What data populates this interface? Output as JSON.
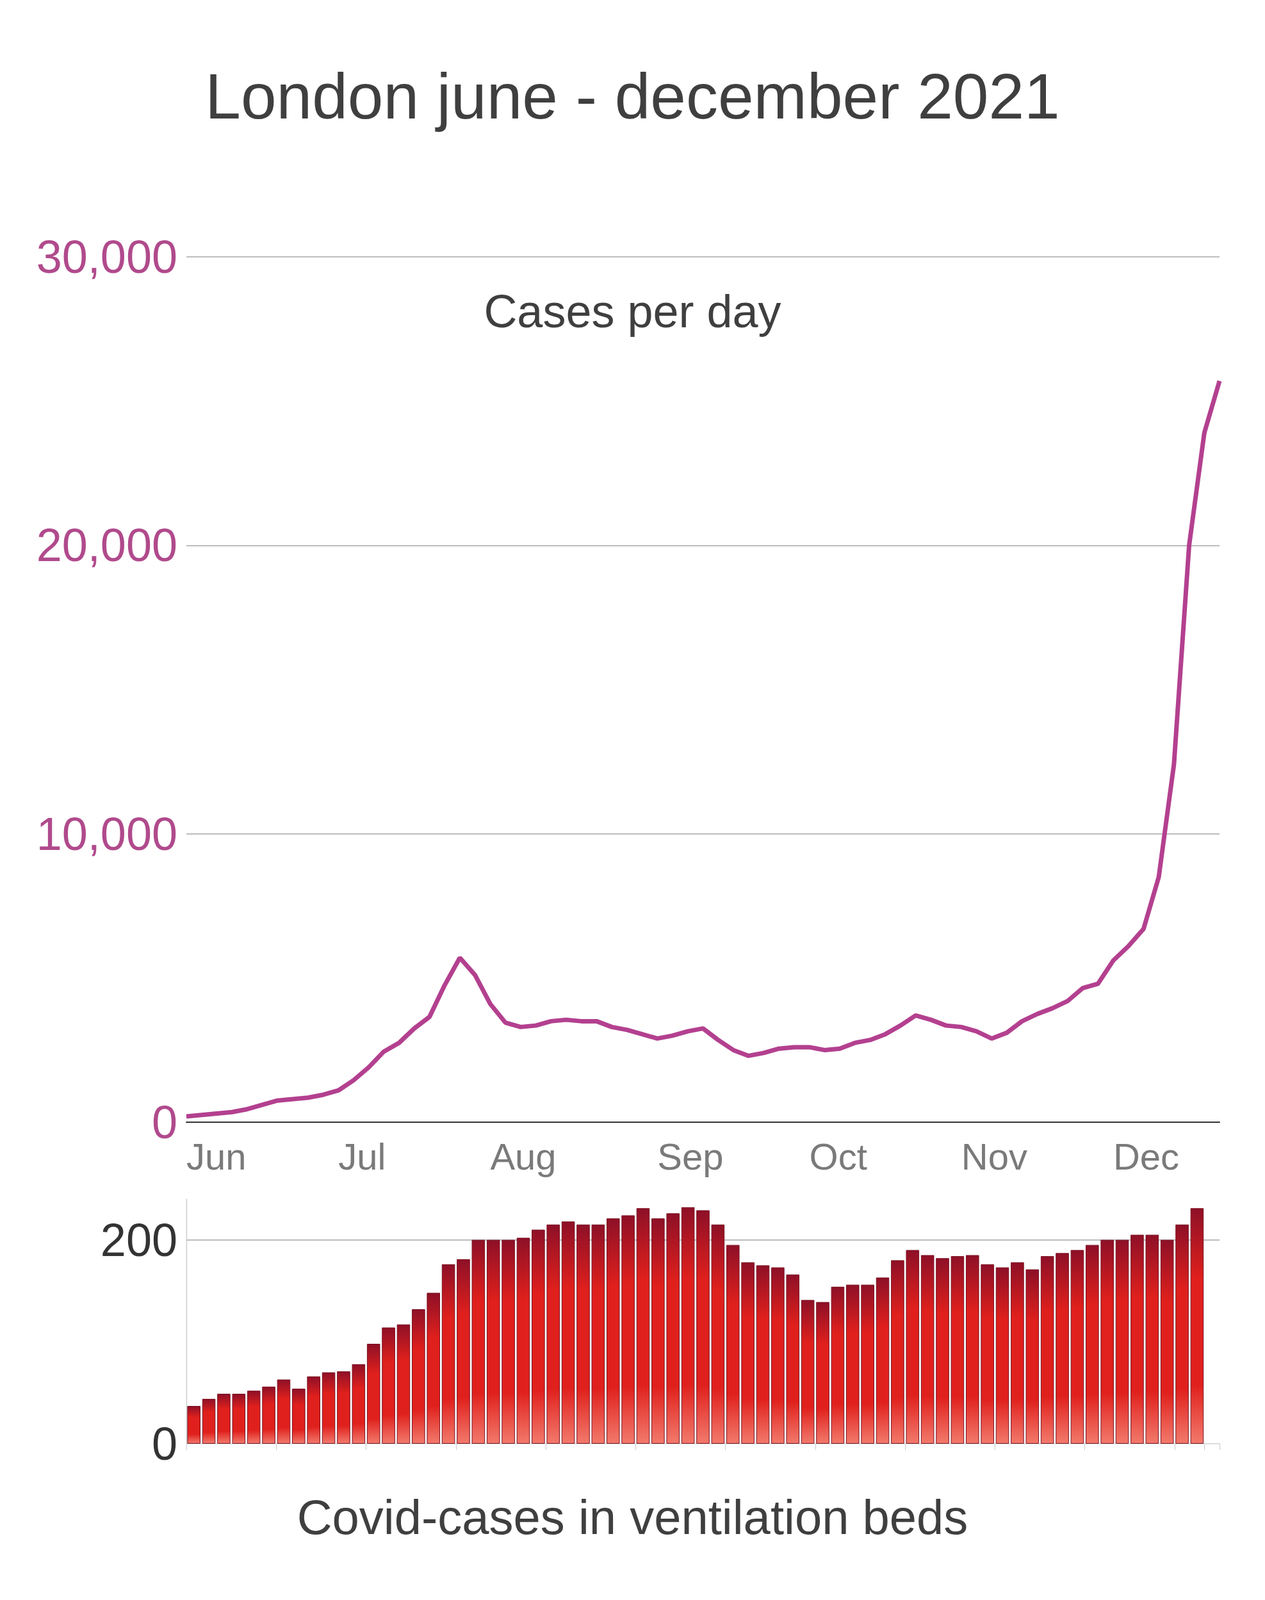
{
  "chart_data": [
    {
      "type": "line",
      "title": "London june - december 2021",
      "subtitle": "Cases per day",
      "categories": [
        "Jun",
        null,
        null,
        null,
        null,
        null,
        null,
        null,
        null,
        null,
        "Jul",
        null,
        null,
        null,
        null,
        null,
        null,
        null,
        null,
        null,
        "Aug",
        null,
        null,
        null,
        null,
        null,
        null,
        null,
        null,
        null,
        null,
        "Sep",
        null,
        null,
        null,
        null,
        null,
        null,
        null,
        null,
        null,
        "Oct",
        null,
        null,
        null,
        null,
        null,
        null,
        null,
        null,
        null,
        "Nov",
        null,
        null,
        null,
        null,
        null,
        null,
        null,
        null,
        null,
        "Dec",
        null,
        null,
        null,
        null,
        null,
        null,
        null
      ],
      "values": [
        200,
        250,
        300,
        350,
        450,
        600,
        750,
        800,
        850,
        950,
        1100,
        1450,
        1900,
        2450,
        2750,
        3250,
        3650,
        4750,
        5700,
        5100,
        4100,
        3450,
        3300,
        3350,
        3500,
        3550,
        3500,
        3500,
        3300,
        3200,
        3050,
        2900,
        3000,
        3150,
        3250,
        2850,
        2500,
        2300,
        2400,
        2550,
        2600,
        2600,
        2500,
        2550,
        2750,
        2850,
        3050,
        3350,
        3700,
        3550,
        3350,
        3300,
        3150,
        2900,
        3100,
        3500,
        3750,
        3950,
        4200,
        4650,
        4800,
        5600,
        6100,
        6700,
        8500,
        12400,
        20000,
        23900,
        25700
      ],
      "color": "#b3408f",
      "marker": "none",
      "line_style": "solid",
      "ylim": [
        0,
        30000
      ],
      "yticks": [
        0,
        10000,
        20000,
        30000
      ],
      "grid": true
    },
    {
      "type": "bar",
      "title": "Covid-cases in ventilation beds",
      "categories": [
        "Jun",
        null,
        null,
        null,
        null,
        null,
        null,
        null,
        null,
        null,
        "Jul",
        null,
        null,
        null,
        null,
        null,
        null,
        null,
        null,
        null,
        "Aug",
        null,
        null,
        null,
        null,
        null,
        null,
        null,
        null,
        null,
        null,
        "Sep",
        null,
        null,
        null,
        null,
        null,
        null,
        null,
        null,
        null,
        "Oct",
        null,
        null,
        null,
        null,
        null,
        null,
        null,
        null,
        null,
        "Nov",
        null,
        null,
        null,
        null,
        null,
        null,
        null,
        null,
        null,
        "Dec",
        null,
        null,
        null,
        null,
        null,
        null,
        null
      ],
      "values": [
        37,
        44,
        49,
        49,
        52,
        56,
        63,
        54,
        66,
        70,
        71,
        78,
        98,
        114,
        117,
        132,
        148,
        176,
        181,
        200,
        200,
        200,
        202,
        210,
        215,
        218,
        215,
        215,
        221,
        224,
        231,
        221,
        226,
        232,
        229,
        215,
        195,
        178,
        175,
        173,
        166,
        141,
        139,
        154,
        156,
        156,
        163,
        180,
        190,
        185,
        182,
        184,
        185,
        176,
        173,
        178,
        171,
        184,
        187,
        190,
        195,
        200,
        200,
        205,
        205,
        200,
        215,
        231,
        null
      ],
      "color": "#e0201c",
      "ylim": [
        0,
        240
      ],
      "yticks": [
        0,
        200
      ],
      "grid": true,
      "tick_labels": "y"
    }
  ]
}
